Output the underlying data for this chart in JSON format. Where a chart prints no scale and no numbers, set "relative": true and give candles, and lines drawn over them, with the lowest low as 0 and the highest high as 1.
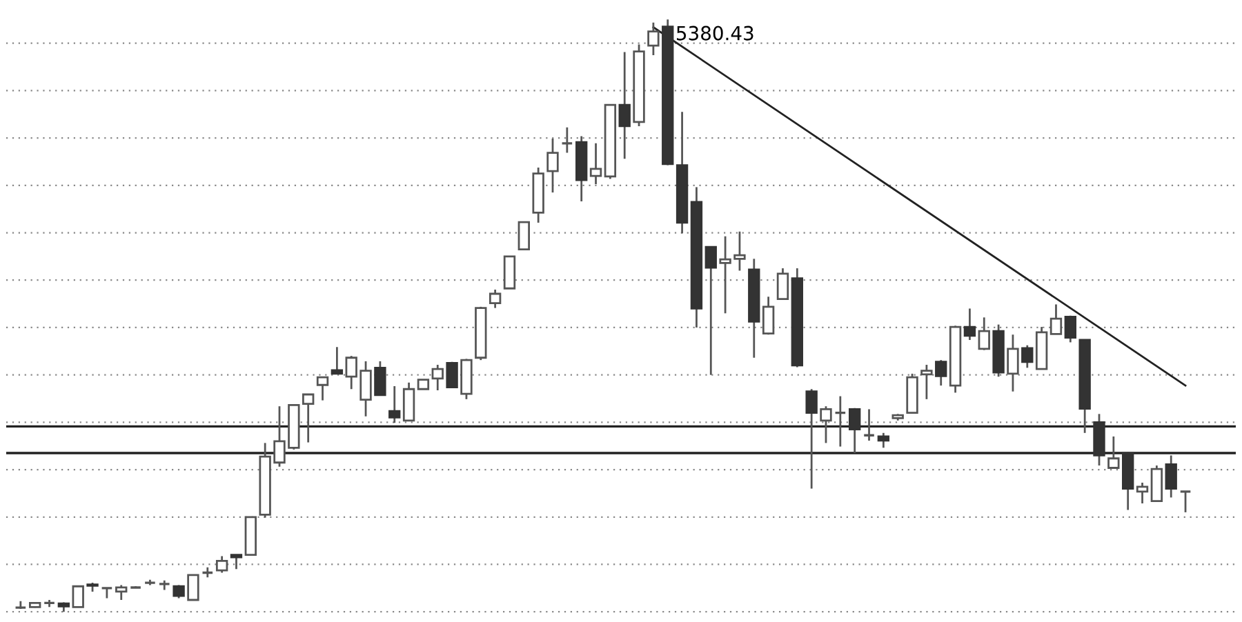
{
  "chart_data": {
    "type": "candlestick",
    "relative": true,
    "grid": "y",
    "categories": [
      null,
      null,
      null,
      null,
      null,
      null,
      null,
      null,
      null,
      null,
      null,
      null,
      null,
      null,
      null,
      null,
      null,
      null,
      null,
      null,
      null,
      null,
      null,
      null,
      null,
      null,
      null,
      null,
      null,
      null,
      null,
      null,
      null,
      null,
      null,
      null,
      null,
      null,
      null,
      null,
      null,
      null,
      null,
      null,
      null,
      null,
      null,
      null,
      null,
      null,
      null,
      null,
      null,
      null,
      null,
      null,
      null,
      null,
      null,
      null,
      null,
      null,
      null,
      null,
      null,
      null,
      null,
      null,
      null,
      null,
      null,
      null,
      null,
      null,
      null,
      null,
      null,
      null,
      null,
      null,
      null,
      null
    ],
    "ohlc": [
      [
        0.007,
        0.018,
        0.005,
        0.007
      ],
      [
        0.008,
        0.016,
        0.007,
        0.015
      ],
      [
        0.015,
        0.02,
        0.008,
        0.015
      ],
      [
        0.014,
        0.016,
        0,
        0.009
      ],
      [
        0.008,
        0.043,
        0.008,
        0.043
      ],
      [
        0.046,
        0.049,
        0.034,
        0.044
      ],
      [
        0.04,
        0.041,
        0.023,
        0.04
      ],
      [
        0.034,
        0.045,
        0.02,
        0.041
      ],
      [
        0.041,
        0.043,
        0.041,
        0.041
      ],
      [
        0.049,
        0.054,
        0.045,
        0.049
      ],
      [
        0.047,
        0.053,
        0.037,
        0.047
      ],
      [
        0.043,
        0.045,
        0.023,
        0.027
      ],
      [
        0.02,
        0.062,
        0.02,
        0.062
      ],
      [
        0.066,
        0.075,
        0.058,
        0.066
      ],
      [
        0.07,
        0.094,
        0.066,
        0.086
      ],
      [
        0.096,
        0.096,
        0.072,
        0.092
      ],
      [
        0.096,
        0.16,
        0.096,
        0.16
      ],
      [
        0.164,
        0.285,
        0.159,
        0.262
      ],
      [
        0.252,
        0.347,
        0.245,
        0.288
      ],
      [
        0.277,
        0.349,
        0.274,
        0.349
      ],
      [
        0.351,
        0.367,
        0.286,
        0.367
      ],
      [
        0.383,
        0.397,
        0.357,
        0.396
      ],
      [
        0.408,
        0.447,
        0.401,
        0.402
      ],
      [
        0.397,
        0.432,
        0.376,
        0.429
      ],
      [
        0.358,
        0.423,
        0.33,
        0.407
      ],
      [
        0.412,
        0.423,
        0.366,
        0.366
      ],
      [
        0.339,
        0.381,
        0.319,
        0.328
      ],
      [
        0.323,
        0.387,
        0.323,
        0.376
      ],
      [
        0.376,
        0.392,
        0.376,
        0.392
      ],
      [
        0.394,
        0.417,
        0.374,
        0.41
      ],
      [
        0.42,
        0.422,
        0.379,
        0.379
      ],
      [
        0.368,
        0.427,
        0.359,
        0.425
      ],
      [
        0.429,
        0.515,
        0.425,
        0.513
      ],
      [
        0.521,
        0.544,
        0.513,
        0.537
      ],
      [
        0.546,
        0.601,
        0.546,
        0.6
      ],
      [
        0.612,
        0.658,
        0.612,
        0.658
      ],
      [
        0.674,
        0.75,
        0.657,
        0.74
      ],
      [
        0.744,
        0.799,
        0.708,
        0.775
      ],
      [
        0.791,
        0.818,
        0.775,
        0.791
      ],
      [
        0.793,
        0.803,
        0.693,
        0.729
      ],
      [
        0.736,
        0.791,
        0.722,
        0.748
      ],
      [
        0.735,
        0.856,
        0.731,
        0.856
      ],
      [
        0.856,
        0.945,
        0.765,
        0.82
      ],
      [
        0.827,
        0.958,
        0.82,
        0.946
      ],
      [
        0.956,
        0.995,
        0.94,
        0.98
      ],
      [
        0.988,
        1,
        0.754,
        0.756
      ],
      [
        0.754,
        0.844,
        0.639,
        0.657
      ],
      [
        0.692,
        0.717,
        0.48,
        0.512
      ],
      [
        0.616,
        0.616,
        0.4,
        0.581
      ],
      [
        0.589,
        0.634,
        0.504,
        0.595
      ],
      [
        0.596,
        0.642,
        0.576,
        0.602
      ],
      [
        0.578,
        0.596,
        0.429,
        0.49
      ],
      [
        0.47,
        0.532,
        0.468,
        0.515
      ],
      [
        0.528,
        0.58,
        0.528,
        0.571
      ],
      [
        0.563,
        0.58,
        0.413,
        0.416
      ],
      [
        0.372,
        0.376,
        0.208,
        0.336
      ],
      [
        0.323,
        0.347,
        0.285,
        0.342
      ],
      [
        0.336,
        0.364,
        0.279,
        0.336
      ],
      [
        0.342,
        0.344,
        0.268,
        0.308
      ],
      [
        0.298,
        0.342,
        0.289,
        0.298
      ],
      [
        0.296,
        0.302,
        0.277,
        0.289
      ],
      [
        0.327,
        0.334,
        0.323,
        0.332
      ],
      [
        0.336,
        0.402,
        0.336,
        0.396
      ],
      [
        0.401,
        0.417,
        0.359,
        0.407
      ],
      [
        0.422,
        0.425,
        0.382,
        0.398
      ],
      [
        0.382,
        0.483,
        0.37,
        0.481
      ],
      [
        0.481,
        0.512,
        0.459,
        0.466
      ],
      [
        0.444,
        0.497,
        0.442,
        0.474
      ],
      [
        0.474,
        0.485,
        0.397,
        0.404
      ],
      [
        0.402,
        0.468,
        0.372,
        0.444
      ],
      [
        0.445,
        0.45,
        0.412,
        0.422
      ],
      [
        0.41,
        0.481,
        0.41,
        0.472
      ],
      [
        0.469,
        0.519,
        0.469,
        0.495
      ],
      [
        0.498,
        0.5,
        0.455,
        0.463
      ],
      [
        0.459,
        0.459,
        0.302,
        0.343
      ],
      [
        0.32,
        0.334,
        0.247,
        0.264
      ],
      [
        0.243,
        0.296,
        0.243,
        0.259
      ],
      [
        0.268,
        0.27,
        0.172,
        0.208
      ],
      [
        0.203,
        0.218,
        0.183,
        0.211
      ],
      [
        0.187,
        0.247,
        0.187,
        0.241
      ],
      [
        0.249,
        0.264,
        0.193,
        0.208
      ],
      [
        0.203,
        0.203,
        0.168,
        0.203
      ]
    ],
    "series": [
      {
        "type": "line",
        "color": "#222222",
        "values": [
          null,
          null,
          null,
          null,
          null,
          null,
          null,
          null,
          null,
          null,
          null,
          null,
          null,
          null,
          null,
          null,
          null,
          null,
          null,
          null,
          null,
          null,
          null,
          null,
          null,
          null,
          null,
          null,
          null,
          null,
          null,
          null,
          null,
          null,
          null,
          null,
          null,
          null,
          null,
          null,
          null,
          null,
          null,
          null,
          0.987,
          null,
          null,
          null,
          null,
          null,
          null,
          null,
          null,
          null,
          null,
          null,
          null,
          null,
          null,
          null,
          null,
          null,
          null,
          null,
          null,
          null,
          null,
          null,
          null,
          null,
          null,
          null,
          null,
          null,
          null,
          null,
          null,
          null,
          null,
          null,
          null,
          0.382
        ]
      }
    ],
    "ref_lines": [
      {
        "axis": "y",
        "value": 0.313,
        "color": "#222222"
      },
      {
        "axis": "y",
        "value": 0.268,
        "color": "#222222"
      }
    ],
    "annotations": [
      "5380.43"
    ]
  }
}
